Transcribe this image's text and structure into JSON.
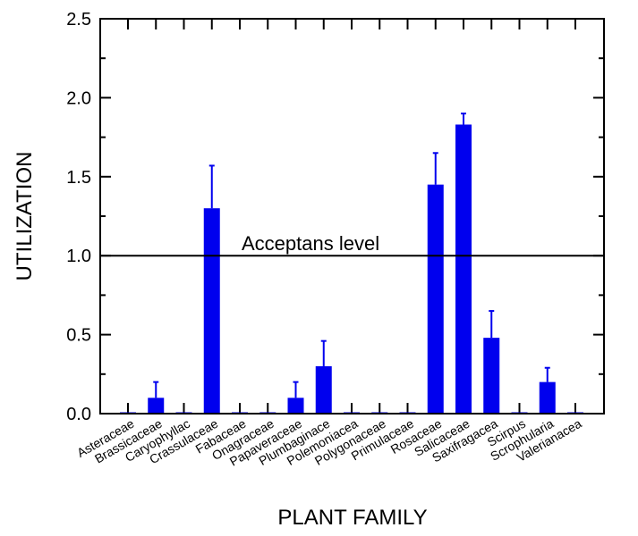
{
  "chart_data": {
    "type": "bar",
    "title": "",
    "xlabel": "PLANT FAMILY",
    "ylabel": "UTILIZATION",
    "ylim": [
      0,
      2.5
    ],
    "yticks": [
      "0.0",
      "0.5",
      "1.0",
      "1.5",
      "2.0",
      "2.5"
    ],
    "categories": [
      "Asteraceae",
      "Brassicaceae",
      "Caryophyllac",
      "Crassulaceae",
      "Fabaceae",
      "Onagraceae",
      "Papaveraceae",
      "Plumbaginace",
      "Polemoniacea",
      "Polygonaceae",
      "Primulaceae",
      "Rosaceae",
      "Salicaceae",
      "Saxifragacea",
      "Scirpus",
      "Scrophularia",
      "Valerianacea"
    ],
    "values": [
      0,
      0.1,
      0,
      1.3,
      0,
      0,
      0.1,
      0.3,
      0,
      0,
      0,
      1.45,
      1.83,
      0.48,
      0,
      0.2,
      0
    ],
    "error_upper": [
      0,
      0.2,
      0,
      1.57,
      0,
      0,
      0.2,
      0.46,
      0,
      0,
      0,
      1.65,
      1.9,
      0.65,
      0,
      0.29,
      0
    ],
    "reference_line": {
      "value": 1.0,
      "label": "Acceptans level"
    },
    "bar_color": "#0000ee",
    "grid": false
  }
}
